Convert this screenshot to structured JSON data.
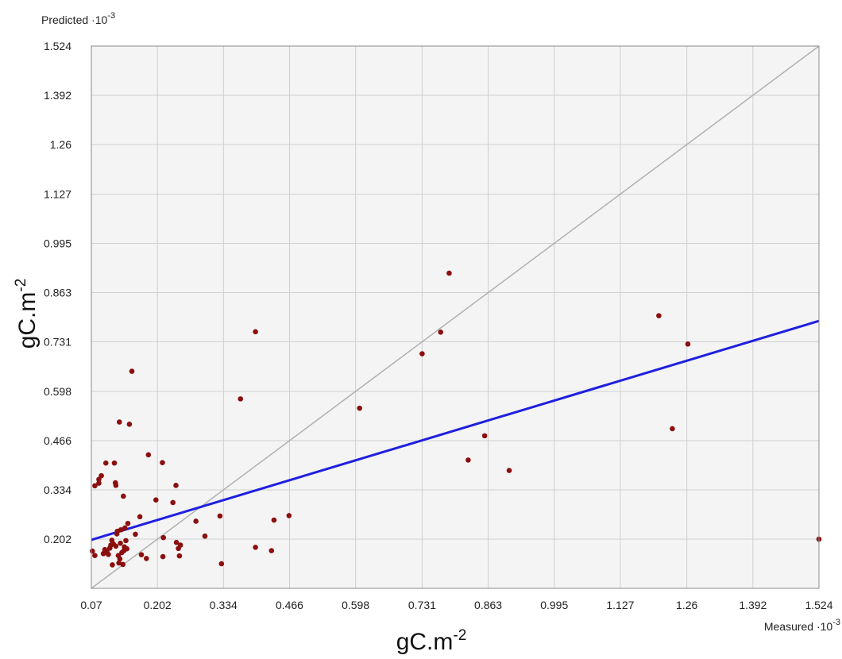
{
  "chart_data": {
    "type": "scatter",
    "title": "",
    "y_corner_label": {
      "text": "Predicted ·10",
      "exp": "-3"
    },
    "x_corner_label": {
      "text": "Measured ·10",
      "exp": "-3"
    },
    "xlabel": {
      "text": "gC.m",
      "exp": "-2"
    },
    "ylabel": {
      "text": "gC.m",
      "exp": "-2"
    },
    "xlim": [
      0.07,
      1.524
    ],
    "ylim": [
      0.07,
      1.524
    ],
    "x_ticks": [
      "0.07",
      "0.202",
      "0.334",
      "0.466",
      "0.598",
      "0.731",
      "0.863",
      "0.995",
      "1.127",
      "1.26",
      "1.392",
      "1.524"
    ],
    "y_ticks": [
      "0.202",
      "0.334",
      "0.466",
      "0.598",
      "0.731",
      "0.863",
      "0.995",
      "1.127",
      "1.26",
      "1.392",
      "1.524"
    ],
    "grid": true,
    "identity_line": {
      "from": [
        0.07,
        0.07
      ],
      "to": [
        1.524,
        1.524
      ],
      "color": "#b0b0b0"
    },
    "regression_line": {
      "from": [
        0.07,
        0.2
      ],
      "to": [
        1.524,
        0.787
      ],
      "color": "#1f1fe0"
    },
    "point_color": "#8b0f0f",
    "points": [
      [
        0.072,
        0.17
      ],
      [
        0.077,
        0.158
      ],
      [
        0.077,
        0.345
      ],
      [
        0.085,
        0.352
      ],
      [
        0.085,
        0.362
      ],
      [
        0.09,
        0.372
      ],
      [
        0.094,
        0.163
      ],
      [
        0.096,
        0.166
      ],
      [
        0.097,
        0.174
      ],
      [
        0.099,
        0.406
      ],
      [
        0.101,
        0.169
      ],
      [
        0.104,
        0.161
      ],
      [
        0.107,
        0.178
      ],
      [
        0.109,
        0.186
      ],
      [
        0.111,
        0.199
      ],
      [
        0.112,
        0.133
      ],
      [
        0.114,
        0.189
      ],
      [
        0.116,
        0.406
      ],
      [
        0.118,
        0.353
      ],
      [
        0.119,
        0.346
      ],
      [
        0.119,
        0.183
      ],
      [
        0.121,
        0.216
      ],
      [
        0.122,
        0.223
      ],
      [
        0.124,
        0.158
      ],
      [
        0.125,
        0.138
      ],
      [
        0.126,
        0.516
      ],
      [
        0.127,
        0.149
      ],
      [
        0.128,
        0.191
      ],
      [
        0.129,
        0.227
      ],
      [
        0.131,
        0.166
      ],
      [
        0.133,
        0.134
      ],
      [
        0.134,
        0.317
      ],
      [
        0.135,
        0.171
      ],
      [
        0.136,
        0.181
      ],
      [
        0.137,
        0.232
      ],
      [
        0.139,
        0.198
      ],
      [
        0.141,
        0.176
      ],
      [
        0.143,
        0.244
      ],
      [
        0.146,
        0.51
      ],
      [
        0.151,
        0.652
      ],
      [
        0.158,
        0.215
      ],
      [
        0.167,
        0.262
      ],
      [
        0.17,
        0.16
      ],
      [
        0.18,
        0.15
      ],
      [
        0.184,
        0.428
      ],
      [
        0.199,
        0.307
      ],
      [
        0.212,
        0.407
      ],
      [
        0.213,
        0.155
      ],
      [
        0.214,
        0.206
      ],
      [
        0.233,
        0.3
      ],
      [
        0.239,
        0.346
      ],
      [
        0.24,
        0.193
      ],
      [
        0.244,
        0.177
      ],
      [
        0.246,
        0.157
      ],
      [
        0.248,
        0.186
      ],
      [
        0.279,
        0.25
      ],
      [
        0.297,
        0.21
      ],
      [
        0.327,
        0.264
      ],
      [
        0.33,
        0.136
      ],
      [
        0.368,
        0.578
      ],
      [
        0.398,
        0.758
      ],
      [
        0.398,
        0.18
      ],
      [
        0.43,
        0.171
      ],
      [
        0.435,
        0.253
      ],
      [
        0.465,
        0.265
      ],
      [
        0.606,
        0.553
      ],
      [
        0.731,
        0.699
      ],
      [
        0.768,
        0.757
      ],
      [
        0.785,
        0.915
      ],
      [
        0.823,
        0.414
      ],
      [
        0.856,
        0.479
      ],
      [
        0.905,
        0.386
      ],
      [
        1.204,
        0.801
      ],
      [
        1.231,
        0.498
      ],
      [
        1.262,
        0.725
      ],
      [
        1.524,
        0.202
      ]
    ]
  }
}
